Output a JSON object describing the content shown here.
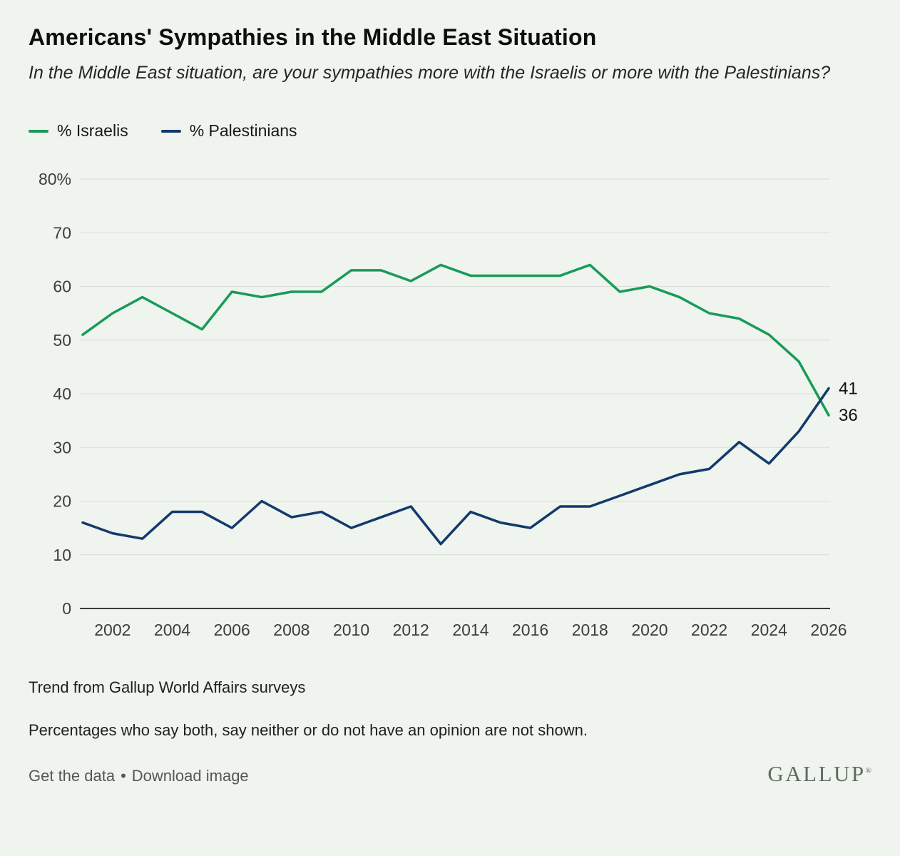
{
  "page": {
    "title": "Americans' Sympathies in the Middle East Situation",
    "subtitle": "In the Middle East situation, are your sympathies more with the Israelis or more with the Palestinians?",
    "footnote_source": "Trend from Gallup World Affairs surveys",
    "footnote_note": "Percentages who say both, say neither or do not have an opinion are not shown.",
    "links": {
      "get_data": "Get the data",
      "separator": "•",
      "download": "Download image"
    },
    "logo": "GALLUP",
    "logo_mark": "®"
  },
  "colors": {
    "background": "#eff4ee",
    "israelis": "#1a9a58",
    "palestinians": "#133a6d",
    "grid": "#d8ded7",
    "axis": "#3c3c3c",
    "tick_text": "#3d3d3d",
    "end_label_text": "#101010"
  },
  "chart_data": {
    "type": "line",
    "x": [
      2001,
      2002,
      2003,
      2004,
      2005,
      2006,
      2007,
      2008,
      2009,
      2010,
      2011,
      2012,
      2013,
      2014,
      2015,
      2016,
      2017,
      2018,
      2019,
      2020,
      2021,
      2022,
      2023,
      2024,
      2025,
      2026
    ],
    "series": [
      {
        "name": "% Israelis",
        "color_key": "israelis",
        "values": [
          51,
          55,
          58,
          55,
          52,
          59,
          58,
          59,
          59,
          63,
          63,
          61,
          64,
          62,
          62,
          62,
          62,
          64,
          59,
          60,
          58,
          55,
          54,
          51,
          46,
          36
        ],
        "end_label": "36"
      },
      {
        "name": "% Palestinians",
        "color_key": "palestinians",
        "values": [
          16,
          14,
          13,
          18,
          18,
          15,
          20,
          17,
          18,
          15,
          17,
          19,
          12,
          18,
          16,
          15,
          19,
          19,
          21,
          23,
          25,
          26,
          31,
          27,
          33,
          41
        ],
        "end_label": "41"
      }
    ],
    "ylim": [
      0,
      80
    ],
    "yticks": [
      0,
      10,
      20,
      30,
      40,
      50,
      60,
      70,
      80
    ],
    "ytick_top_label": "80%",
    "xticks": [
      2002,
      2004,
      2006,
      2008,
      2010,
      2012,
      2014,
      2016,
      2018,
      2020,
      2022,
      2024,
      2026
    ],
    "grid": true,
    "legend_position": "top-left"
  }
}
